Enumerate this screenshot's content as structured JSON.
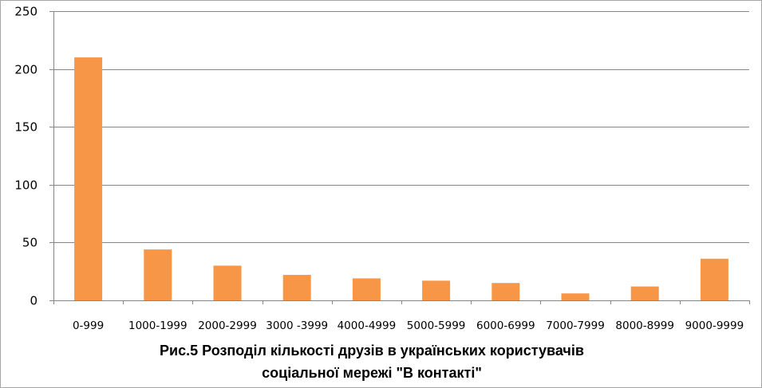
{
  "chart_data": {
    "type": "bar",
    "title_lines": [
      "Рис.5 Розподіл кількості друзів в українських користувачів",
      "соціальної мережі \"В контакті\""
    ],
    "categories": [
      "0-999",
      "1000-1999",
      "2000-2999",
      "3000 -3999",
      "4000-4999",
      "5000-5999",
      "6000-6999",
      "7000-7999",
      "8000-8999",
      "9000-9999"
    ],
    "values": [
      210,
      44,
      30,
      22,
      19,
      17,
      15,
      6,
      12,
      36
    ],
    "xlabel": "",
    "ylabel": "",
    "ylim": [
      0,
      250
    ],
    "yticks": [
      0,
      50,
      100,
      150,
      200,
      250
    ],
    "grid": true,
    "legend": "none",
    "bar_color": "#f79646",
    "grid_color": "#868686"
  }
}
